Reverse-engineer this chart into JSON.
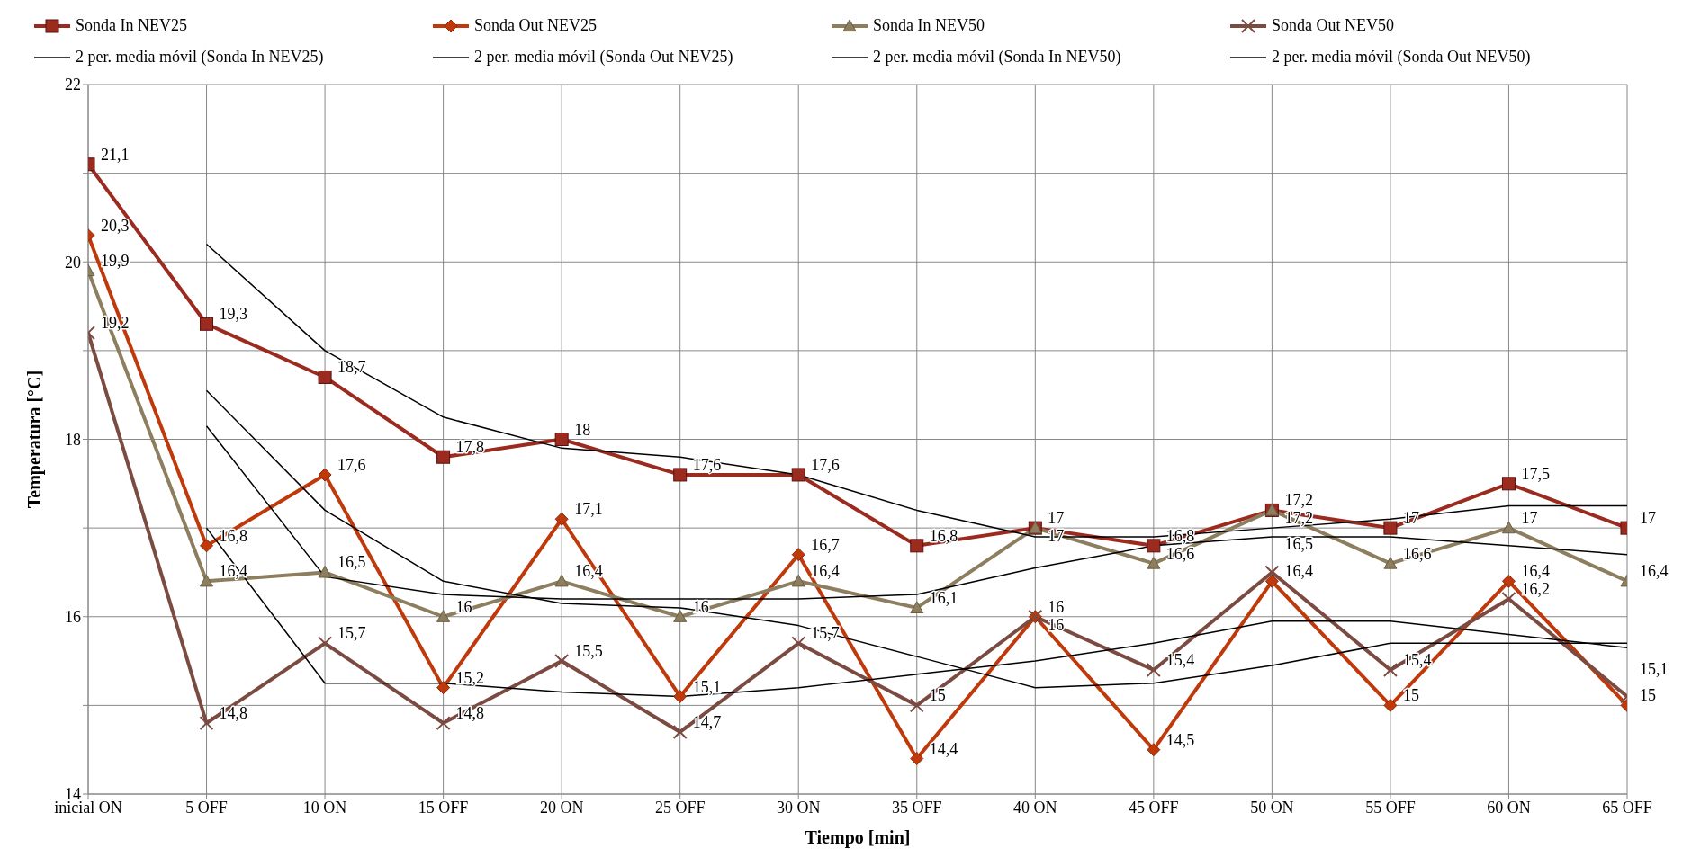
{
  "chart_data": {
    "type": "line",
    "xlabel": "Tiempo [min]",
    "ylabel": "Temperatura [°C]",
    "categories": [
      "inicial ON",
      "5 OFF",
      "10 ON",
      "15 OFF",
      "20 ON",
      "25 OFF",
      "30 ON",
      "35 OFF",
      "40 ON",
      "45 OFF",
      "50 ON",
      "55 OFF",
      "60 ON",
      "65 OFF"
    ],
    "ylim": [
      14,
      22
    ],
    "yticks": [
      14,
      {
        "value": 15,
        "label": null
      },
      16,
      {
        "value": 17,
        "label": null
      },
      18,
      {
        "value": 19,
        "label": null
      },
      20,
      {
        "value": 21,
        "label": null
      },
      22
    ],
    "grid": true,
    "legend": "top",
    "series": [
      {
        "name": "Sonda In NEV25",
        "color": "#9b2a1f",
        "marker": "square",
        "values": [
          21.1,
          19.3,
          18.7,
          17.8,
          18,
          17.6,
          17.6,
          16.8,
          17,
          16.8,
          17.2,
          17,
          17.5,
          17
        ],
        "value_labels": [
          "21,1",
          "19,3",
          "18,7",
          "17,8",
          "18",
          "17,6",
          "17,6",
          "16,8",
          "17",
          "16,8",
          "17,2",
          "17",
          "17,5",
          "17"
        ]
      },
      {
        "name": "Sonda Out NEV25",
        "color": "#c0390b",
        "marker": "diamond",
        "values": [
          20.3,
          16.8,
          17.6,
          15.2,
          17.1,
          15.1,
          16.7,
          14.4,
          16,
          14.5,
          16.4,
          15,
          16.4,
          15
        ],
        "value_labels": [
          "20,3",
          "16,8",
          "17,6",
          "15,2",
          "17,1",
          "15,1",
          "16,7",
          "14,4",
          "16",
          "14,5",
          "16,4",
          "15",
          "16,4",
          "15"
        ]
      },
      {
        "name": "Sonda In NEV50",
        "color": "#8c7e5e",
        "marker": "triangle",
        "values": [
          19.9,
          16.4,
          16.5,
          16,
          16.4,
          16,
          16.4,
          16.1,
          17,
          16.6,
          17.2,
          16.6,
          17,
          16.4
        ],
        "value_labels": [
          "19,9",
          "16,4",
          "16,5",
          "16",
          "16,4",
          "16",
          "16,4",
          "16,1",
          "17",
          "16,6",
          "17,2",
          "16,6",
          "17",
          "16,4"
        ]
      },
      {
        "name": "Sonda Out NEV50",
        "color": "#7b4b42",
        "marker": "cross",
        "values": [
          19.2,
          14.8,
          15.7,
          14.8,
          15.5,
          14.7,
          15.7,
          15,
          16,
          15.4,
          16.5,
          15.4,
          16.2,
          15.1
        ],
        "value_labels": [
          "19,2",
          "14,8",
          "15,7",
          "14,8",
          "15,5",
          "14,7",
          "15,7",
          "15",
          "16",
          "15,4",
          "16,5",
          "15,4",
          "16,2",
          "15,1"
        ]
      },
      {
        "name": "2 per. media móvil (Sonda In NEV25)",
        "color": "#000000",
        "marker": "none",
        "values": [
          null,
          20.2,
          19,
          18.25,
          17.9,
          17.8,
          17.6,
          17.2,
          16.9,
          16.9,
          17,
          17.1,
          17.25,
          17.25
        ]
      },
      {
        "name": "2 per. media móvil (Sonda Out NEV25)",
        "color": "#000000",
        "marker": "none",
        "values": [
          null,
          18.55,
          17.2,
          16.4,
          16.15,
          16.1,
          15.9,
          15.55,
          15.2,
          15.25,
          15.45,
          15.7,
          15.7,
          15.7
        ]
      },
      {
        "name": "2 per. media móvil (Sonda In NEV50)",
        "color": "#000000",
        "marker": "none",
        "values": [
          null,
          18.15,
          16.45,
          16.25,
          16.2,
          16.2,
          16.2,
          16.25,
          16.55,
          16.8,
          16.9,
          16.9,
          16.8,
          16.7
        ]
      },
      {
        "name": "2 per. media móvil (Sonda Out NEV50)",
        "color": "#000000",
        "marker": "none",
        "values": [
          null,
          17,
          15.25,
          15.25,
          15.15,
          15.1,
          15.2,
          15.35,
          15.5,
          15.7,
          15.95,
          15.95,
          15.8,
          15.65
        ]
      }
    ]
  }
}
